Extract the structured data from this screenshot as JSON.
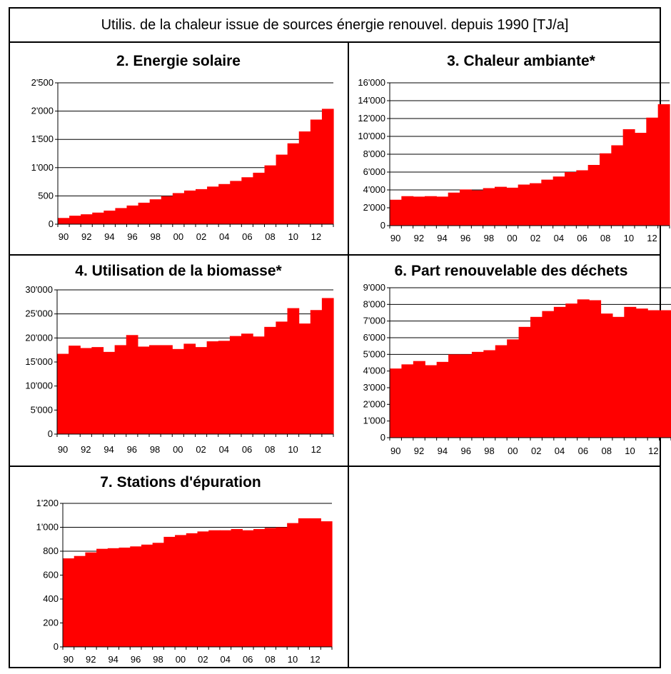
{
  "header": {
    "title": "Utilis. de la chaleur issue de sources énergie renouvel. depuis 1990  [TJ/a]"
  },
  "colors": {
    "bar": "#ff0000",
    "grid": "#000000",
    "background": "#ffffff"
  },
  "chart_data": [
    {
      "type": "bar",
      "title": "2. Energie solaire",
      "categories": [
        "90",
        "91",
        "92",
        "93",
        "94",
        "95",
        "96",
        "97",
        "98",
        "99",
        "00",
        "01",
        "02",
        "03",
        "04",
        "05",
        "06",
        "07",
        "08",
        "09",
        "10",
        "11",
        "12",
        "13"
      ],
      "xtick_labels": [
        "90",
        "92",
        "94",
        "96",
        "98",
        "00",
        "02",
        "04",
        "06",
        "08",
        "10",
        "12"
      ],
      "values": [
        110,
        150,
        175,
        205,
        240,
        285,
        330,
        380,
        440,
        495,
        550,
        595,
        620,
        665,
        710,
        765,
        830,
        910,
        1040,
        1230,
        1430,
        1640,
        1850,
        2040
      ],
      "ylim": [
        0,
        2500
      ],
      "yticks": [
        0,
        500,
        1000,
        1500,
        2000,
        2500
      ],
      "ytick_labels": [
        "0",
        "500",
        "1'000",
        "1'500",
        "2'000",
        "2'500"
      ],
      "grid": true
    },
    {
      "type": "bar",
      "title": "3. Chaleur ambiante*",
      "categories": [
        "90",
        "91",
        "92",
        "93",
        "94",
        "95",
        "96",
        "97",
        "98",
        "99",
        "00",
        "01",
        "02",
        "03",
        "04",
        "05",
        "06",
        "07",
        "08",
        "09",
        "10",
        "11",
        "12",
        "13"
      ],
      "xtick_labels": [
        "90",
        "92",
        "94",
        "96",
        "98",
        "00",
        "02",
        "04",
        "06",
        "08",
        "10",
        "12"
      ],
      "values": [
        2900,
        3300,
        3250,
        3300,
        3250,
        3700,
        4050,
        3950,
        4200,
        4350,
        4250,
        4600,
        4750,
        5150,
        5500,
        6000,
        6200,
        6800,
        8100,
        9000,
        10800,
        10400,
        12100,
        13600
      ],
      "ylim": [
        0,
        16000
      ],
      "yticks": [
        0,
        2000,
        4000,
        6000,
        8000,
        10000,
        12000,
        14000,
        16000
      ],
      "ytick_labels": [
        "0",
        "2'000",
        "4'000",
        "6'000",
        "8'000",
        "10'000",
        "12'000",
        "14'000",
        "16'000"
      ],
      "grid": true
    },
    {
      "type": "bar",
      "title": "4. Utilisation de la biomasse*",
      "categories": [
        "90",
        "91",
        "92",
        "93",
        "94",
        "95",
        "96",
        "97",
        "98",
        "99",
        "00",
        "01",
        "02",
        "03",
        "04",
        "05",
        "06",
        "07",
        "08",
        "09",
        "10",
        "11",
        "12",
        "13"
      ],
      "xtick_labels": [
        "90",
        "92",
        "94",
        "96",
        "98",
        "00",
        "02",
        "04",
        "06",
        "08",
        "10",
        "12"
      ],
      "values": [
        16700,
        18400,
        17900,
        18100,
        17100,
        18500,
        20600,
        18200,
        18500,
        18500,
        17700,
        18800,
        18100,
        19300,
        19400,
        20400,
        20900,
        20300,
        22300,
        23400,
        26200,
        23000,
        25800,
        28300
      ],
      "ylim": [
        0,
        30000
      ],
      "yticks": [
        0,
        5000,
        10000,
        15000,
        20000,
        25000,
        30000
      ],
      "ytick_labels": [
        "0",
        "5'000",
        "10'000",
        "15'000",
        "20'000",
        "25'000",
        "30'000"
      ],
      "grid": true
    },
    {
      "type": "bar",
      "title": "6. Part renouvelable des déchets",
      "categories": [
        "90",
        "91",
        "92",
        "93",
        "94",
        "95",
        "96",
        "97",
        "98",
        "99",
        "00",
        "01",
        "02",
        "03",
        "04",
        "05",
        "06",
        "07",
        "08",
        "09",
        "10",
        "11",
        "12",
        "13"
      ],
      "xtick_labels": [
        "90",
        "92",
        "94",
        "96",
        "98",
        "00",
        "02",
        "04",
        "06",
        "08",
        "10",
        "12"
      ],
      "values": [
        4150,
        4400,
        4600,
        4350,
        4550,
        5000,
        5000,
        5150,
        5250,
        5550,
        5900,
        6650,
        7250,
        7600,
        7850,
        8050,
        8300,
        8250,
        7450,
        7250,
        7850,
        7750,
        7650,
        7650
      ],
      "ylim": [
        0,
        9000
      ],
      "yticks": [
        0,
        1000,
        2000,
        3000,
        4000,
        5000,
        6000,
        7000,
        8000,
        9000
      ],
      "ytick_labels": [
        "0",
        "1'000",
        "2'000",
        "3'000",
        "4'000",
        "5'000",
        "6'000",
        "7'000",
        "8'000",
        "9'000"
      ],
      "grid": true
    },
    {
      "type": "bar",
      "title": "7. Stations d'épuration",
      "categories": [
        "90",
        "91",
        "92",
        "93",
        "94",
        "95",
        "96",
        "97",
        "98",
        "99",
        "00",
        "01",
        "02",
        "03",
        "04",
        "05",
        "06",
        "07",
        "08",
        "09",
        "10",
        "11",
        "12",
        "13"
      ],
      "xtick_labels": [
        "90",
        "92",
        "94",
        "96",
        "98",
        "00",
        "02",
        "04",
        "06",
        "08",
        "10",
        "12"
      ],
      "values": [
        740,
        760,
        790,
        820,
        825,
        830,
        840,
        855,
        870,
        920,
        935,
        950,
        965,
        975,
        975,
        985,
        975,
        985,
        995,
        1000,
        1035,
        1075,
        1075,
        1050
      ],
      "ylim": [
        0,
        1200
      ],
      "yticks": [
        0,
        200,
        400,
        600,
        800,
        1000,
        1200
      ],
      "ytick_labels": [
        "0",
        "200",
        "400",
        "600",
        "800",
        "1'000",
        "1'200"
      ],
      "grid": true
    }
  ]
}
